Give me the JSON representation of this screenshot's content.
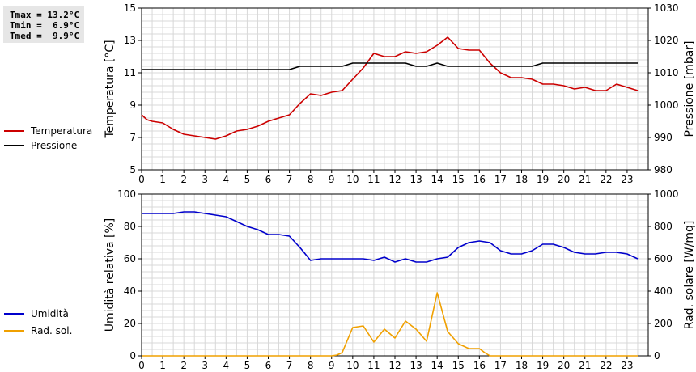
{
  "stats": {
    "tmax": "Tmax = 13.2°C",
    "tmin": "Tmin =  6.9°C",
    "tmed": "Tmed =  9.9°C"
  },
  "legend_top": [
    {
      "label": "Temperatura",
      "color": "#cc0000"
    },
    {
      "label": "Pressione",
      "color": "#000000"
    }
  ],
  "legend_bottom": [
    {
      "label": "Umidità",
      "color": "#0000cc"
    },
    {
      "label": "Rad. sol.",
      "color": "#f0a000"
    }
  ],
  "chart_data": [
    {
      "type": "line",
      "xlabel": "",
      "x_ticks": [
        "0",
        "1",
        "2",
        "3",
        "4",
        "5",
        "6",
        "7",
        "8",
        "9",
        "10",
        "11",
        "12",
        "13",
        "14",
        "15",
        "16",
        "17",
        "18",
        "19",
        "20",
        "21",
        "22",
        "23"
      ],
      "xlim": [
        0,
        24
      ],
      "ylabel": "Temperatura [°C]",
      "ylim": [
        5,
        15
      ],
      "y_ticks": [
        5,
        7,
        9,
        11,
        13,
        15
      ],
      "y2label": "Pressione [mbar]",
      "y2lim": [
        980,
        1030
      ],
      "y2_ticks": [
        980,
        990,
        1000,
        1010,
        1020,
        1030
      ],
      "grid": true,
      "series": [
        {
          "name": "Temperatura",
          "axis": "left",
          "color": "#cc0000",
          "x": [
            0,
            0.25,
            0.5,
            1,
            1.5,
            2,
            2.5,
            3,
            3.5,
            4,
            4.5,
            5,
            5.5,
            6,
            6.5,
            7,
            7.5,
            8,
            8.5,
            9,
            9.5,
            10,
            10.5,
            11,
            11.5,
            12,
            12.5,
            13,
            13.5,
            14,
            14.5,
            15,
            15.5,
            16,
            16.5,
            17,
            17.5,
            18,
            18.5,
            19,
            19.5,
            20,
            20.5,
            21,
            21.5,
            22,
            22.5,
            23,
            23.5
          ],
          "values": [
            8.4,
            8.1,
            8.0,
            7.9,
            7.5,
            7.2,
            7.1,
            7.0,
            6.9,
            7.1,
            7.4,
            7.5,
            7.7,
            8.0,
            8.2,
            8.4,
            9.1,
            9.7,
            9.6,
            9.8,
            9.9,
            10.6,
            11.3,
            12.2,
            12.0,
            12.0,
            12.3,
            12.2,
            12.3,
            12.7,
            13.2,
            12.5,
            12.4,
            12.4,
            11.6,
            11.0,
            10.7,
            10.7,
            10.6,
            10.3,
            10.3,
            10.2,
            10.0,
            10.1,
            9.9,
            9.9,
            10.3,
            10.1,
            9.9
          ]
        },
        {
          "name": "Pressione",
          "axis": "right",
          "color": "#000000",
          "x": [
            0,
            1,
            2,
            3,
            4,
            5,
            6,
            7,
            7.5,
            8,
            9,
            9.5,
            10,
            11,
            12,
            12.5,
            13,
            13.5,
            14,
            14.5,
            15,
            16,
            17,
            18,
            18.5,
            19,
            20,
            21,
            22,
            23,
            23.5
          ],
          "values": [
            1011,
            1011,
            1011,
            1011,
            1011,
            1011,
            1011,
            1011,
            1012,
            1012,
            1012,
            1012,
            1013,
            1013,
            1013,
            1013,
            1012,
            1012,
            1013,
            1012,
            1012,
            1012,
            1012,
            1012,
            1012,
            1013,
            1013,
            1013,
            1013,
            1013,
            1013
          ]
        }
      ]
    },
    {
      "type": "line",
      "xlabel": "",
      "x_ticks": [
        "0",
        "1",
        "2",
        "3",
        "4",
        "5",
        "6",
        "7",
        "8",
        "9",
        "10",
        "11",
        "12",
        "13",
        "14",
        "15",
        "16",
        "17",
        "18",
        "19",
        "20",
        "21",
        "22",
        "23"
      ],
      "xlim": [
        0,
        24
      ],
      "ylabel": "Umidità relativa [%]",
      "ylim": [
        0,
        100
      ],
      "y_ticks": [
        0,
        20,
        40,
        60,
        80,
        100
      ],
      "y2label": "Rad. solare [W/mq]",
      "y2lim": [
        0,
        1000
      ],
      "y2_ticks": [
        0,
        200,
        400,
        600,
        800,
        1000
      ],
      "grid": true,
      "series": [
        {
          "name": "Umidità",
          "axis": "left",
          "color": "#0000cc",
          "x": [
            0,
            0.5,
            1,
            1.5,
            2,
            2.5,
            3,
            3.5,
            4,
            4.5,
            5,
            5.5,
            6,
            6.5,
            7,
            7.5,
            8,
            8.5,
            9,
            9.5,
            10,
            10.5,
            11,
            11.5,
            12,
            12.5,
            13,
            13.5,
            14,
            14.5,
            15,
            15.5,
            16,
            16.5,
            17,
            17.5,
            18,
            18.5,
            19,
            19.5,
            20,
            20.5,
            21,
            21.5,
            22,
            22.5,
            23,
            23.5
          ],
          "values": [
            88,
            88,
            88,
            88,
            89,
            89,
            88,
            87,
            86,
            83,
            80,
            78,
            75,
            75,
            74,
            67,
            59,
            60,
            60,
            60,
            60,
            60,
            59,
            61,
            58,
            60,
            58,
            58,
            60,
            61,
            67,
            70,
            71,
            70,
            65,
            63,
            63,
            65,
            69,
            69,
            67,
            64,
            63,
            63,
            64,
            64,
            63,
            60
          ]
        },
        {
          "name": "Rad. sol.",
          "axis": "right",
          "color": "#f0a000",
          "x": [
            0,
            1,
            2,
            3,
            4,
            5,
            6,
            7,
            8,
            9,
            9.25,
            9.5,
            10,
            10.5,
            11,
            11.5,
            12,
            12.5,
            13,
            13.5,
            14,
            14.5,
            15,
            15.5,
            16,
            16.25,
            16.5,
            17,
            18,
            19,
            20,
            21,
            22,
            23,
            23.5
          ],
          "values": [
            0,
            0,
            0,
            0,
            0,
            0,
            0,
            0,
            0,
            0,
            5,
            20,
            175,
            185,
            85,
            165,
            110,
            215,
            165,
            90,
            390,
            150,
            75,
            45,
            45,
            20,
            0,
            0,
            0,
            0,
            0,
            0,
            0,
            0,
            0
          ]
        }
      ]
    }
  ]
}
